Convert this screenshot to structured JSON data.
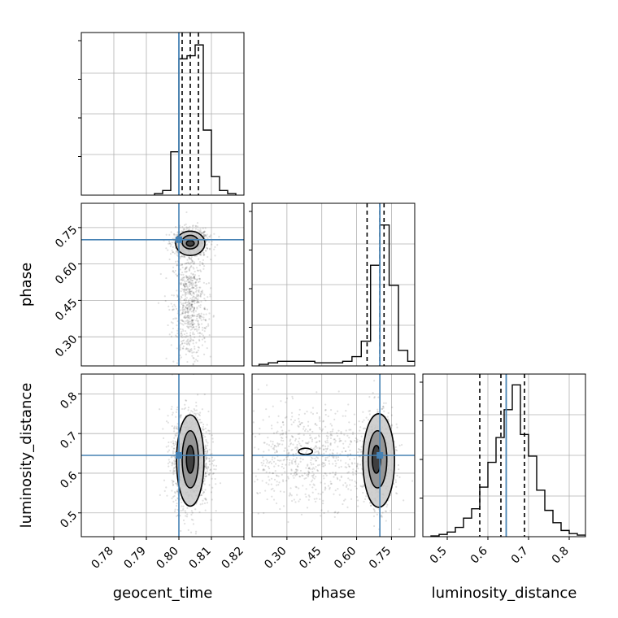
{
  "chart_data": {
    "type": "corner",
    "parameters": [
      "geocent_time",
      "phase",
      "luminosity_distance"
    ],
    "truths": {
      "geocent_time": 0.8,
      "phase": 0.7,
      "luminosity_distance": 0.645
    },
    "truth_color": "#4682b4",
    "grid": true,
    "panels": [
      {
        "name": "hist-geocent-time",
        "type": "histogram",
        "param": "geocent_time",
        "xlim": [
          0.77,
          0.82
        ],
        "ylim": [
          0,
          1.05
        ],
        "bins": [
          0.7925,
          0.795,
          0.7975,
          0.8,
          0.8025,
          0.805,
          0.8075,
          0.81,
          0.8125,
          0.815
        ],
        "values": [
          0.01,
          0.03,
          0.28,
          0.88,
          0.9,
          0.97,
          0.42,
          0.12,
          0.03,
          0.01
        ],
        "quantiles": [
          0.801,
          0.8035,
          0.806
        ],
        "truth": 0.8,
        "xticks": [],
        "yticks": []
      },
      {
        "name": "hist-phase",
        "type": "histogram",
        "param": "phase",
        "xlim": [
          0.15,
          0.85
        ],
        "ylim": [
          0,
          1.05
        ],
        "bins": [
          0.18,
          0.22,
          0.26,
          0.3,
          0.34,
          0.38,
          0.42,
          0.46,
          0.5,
          0.54,
          0.58,
          0.62,
          0.66,
          0.7,
          0.74,
          0.78,
          0.82
        ],
        "values": [
          0.01,
          0.02,
          0.03,
          0.03,
          0.03,
          0.03,
          0.02,
          0.02,
          0.02,
          0.03,
          0.06,
          0.16,
          0.65,
          0.91,
          0.52,
          0.1,
          0.03
        ],
        "quantiles": [
          0.645,
          0.7,
          0.718
        ],
        "truth": 0.7,
        "xticks": [],
        "yticks": []
      },
      {
        "name": "hist-luminosity-distance",
        "type": "histogram",
        "param": "luminosity_distance",
        "xlim": [
          0.44,
          0.84
        ],
        "ylim": [
          0,
          1.05
        ],
        "bins": [
          0.46,
          0.48,
          0.5,
          0.52,
          0.54,
          0.56,
          0.58,
          0.6,
          0.62,
          0.64,
          0.66,
          0.68,
          0.7,
          0.72,
          0.74,
          0.76,
          0.78,
          0.8,
          0.82,
          0.84
        ],
        "values": [
          0.005,
          0.015,
          0.03,
          0.06,
          0.12,
          0.18,
          0.32,
          0.48,
          0.64,
          0.82,
          0.98,
          0.66,
          0.52,
          0.3,
          0.17,
          0.09,
          0.04,
          0.02,
          0.01
        ],
        "quantiles": [
          0.58,
          0.632,
          0.69
        ],
        "truth": 0.645,
        "xticks": [
          0.5,
          0.6,
          0.7,
          0.8
        ],
        "xticklabels": [
          "0.5",
          "0.6",
          "0.7",
          "0.8"
        ],
        "yticks": []
      },
      {
        "name": "scatter-geocent-time-vs-phase",
        "type": "contour-scatter",
        "xparam": "geocent_time",
        "yparam": "phase",
        "xlim": [
          0.77,
          0.82
        ],
        "ylim": [
          0.18,
          0.85
        ],
        "centers": [
          [
            0.8035,
            0.69,
            0.0028,
            0.028
          ],
          [
            0.8035,
            0.42,
            0.0026,
            0.12
          ]
        ],
        "contour_levels": [
          {
            "cx": 0.8035,
            "cy": 0.685,
            "rx": 0.0012,
            "ry": 0.012
          },
          {
            "cx": 0.8035,
            "cy": 0.69,
            "rx": 0.0025,
            "ry": 0.028
          },
          {
            "cx": 0.8035,
            "cy": 0.685,
            "rx": 0.0045,
            "ry": 0.05
          }
        ],
        "truth": [
          0.8,
          0.7
        ],
        "yticks": [
          0.3,
          0.45,
          0.6,
          0.75
        ],
        "yticklabels": [
          "0.30",
          "0.45",
          "0.60",
          "0.75"
        ],
        "ylabel": "phase",
        "xticks": []
      },
      {
        "name": "scatter-geocent-time-vs-luminosity-distance",
        "type": "contour-scatter",
        "xparam": "geocent_time",
        "yparam": "luminosity_distance",
        "xlim": [
          0.77,
          0.82
        ],
        "ylim": [
          0.44,
          0.85
        ],
        "centers": [
          [
            0.8035,
            0.635,
            0.0028,
            0.06
          ]
        ],
        "contour_levels": [
          {
            "cx": 0.8035,
            "cy": 0.635,
            "rx": 0.0012,
            "ry": 0.035
          },
          {
            "cx": 0.8035,
            "cy": 0.635,
            "rx": 0.0025,
            "ry": 0.072
          },
          {
            "cx": 0.8035,
            "cy": 0.632,
            "rx": 0.0042,
            "ry": 0.115
          }
        ],
        "truth": [
          0.8,
          0.645
        ],
        "xticks": [
          0.78,
          0.79,
          0.8,
          0.81,
          0.82
        ],
        "xticklabels": [
          "0.78",
          "0.79",
          "0.80",
          "0.81",
          "0.82"
        ],
        "yticks": [
          0.5,
          0.6,
          0.7,
          0.8
        ],
        "yticklabels": [
          "0.5",
          "0.6",
          "0.7",
          "0.8"
        ],
        "xlabel": "geocent_time",
        "ylabel": "luminosity_distance"
      },
      {
        "name": "scatter-phase-vs-luminosity-distance",
        "type": "contour-scatter",
        "xparam": "phase",
        "yparam": "luminosity_distance",
        "xlim": [
          0.15,
          0.85
        ],
        "ylim": [
          0.44,
          0.85
        ],
        "centers": [
          [
            0.69,
            0.635,
            0.035,
            0.06
          ],
          [
            0.4,
            0.64,
            0.15,
            0.06
          ]
        ],
        "contour_levels": [
          {
            "cx": 0.685,
            "cy": 0.635,
            "rx": 0.018,
            "ry": 0.035
          },
          {
            "cx": 0.69,
            "cy": 0.635,
            "rx": 0.04,
            "ry": 0.072
          },
          {
            "cx": 0.695,
            "cy": 0.632,
            "rx": 0.068,
            "ry": 0.118
          },
          {
            "cx": 0.38,
            "cy": 0.655,
            "rx": 0.03,
            "ry": 0.008
          }
        ],
        "truth": [
          0.7,
          0.645
        ],
        "xticks": [
          0.3,
          0.45,
          0.6,
          0.75
        ],
        "xticklabels": [
          "0.30",
          "0.45",
          "0.60",
          "0.75"
        ],
        "xlabel": "phase",
        "yticks": []
      }
    ]
  }
}
